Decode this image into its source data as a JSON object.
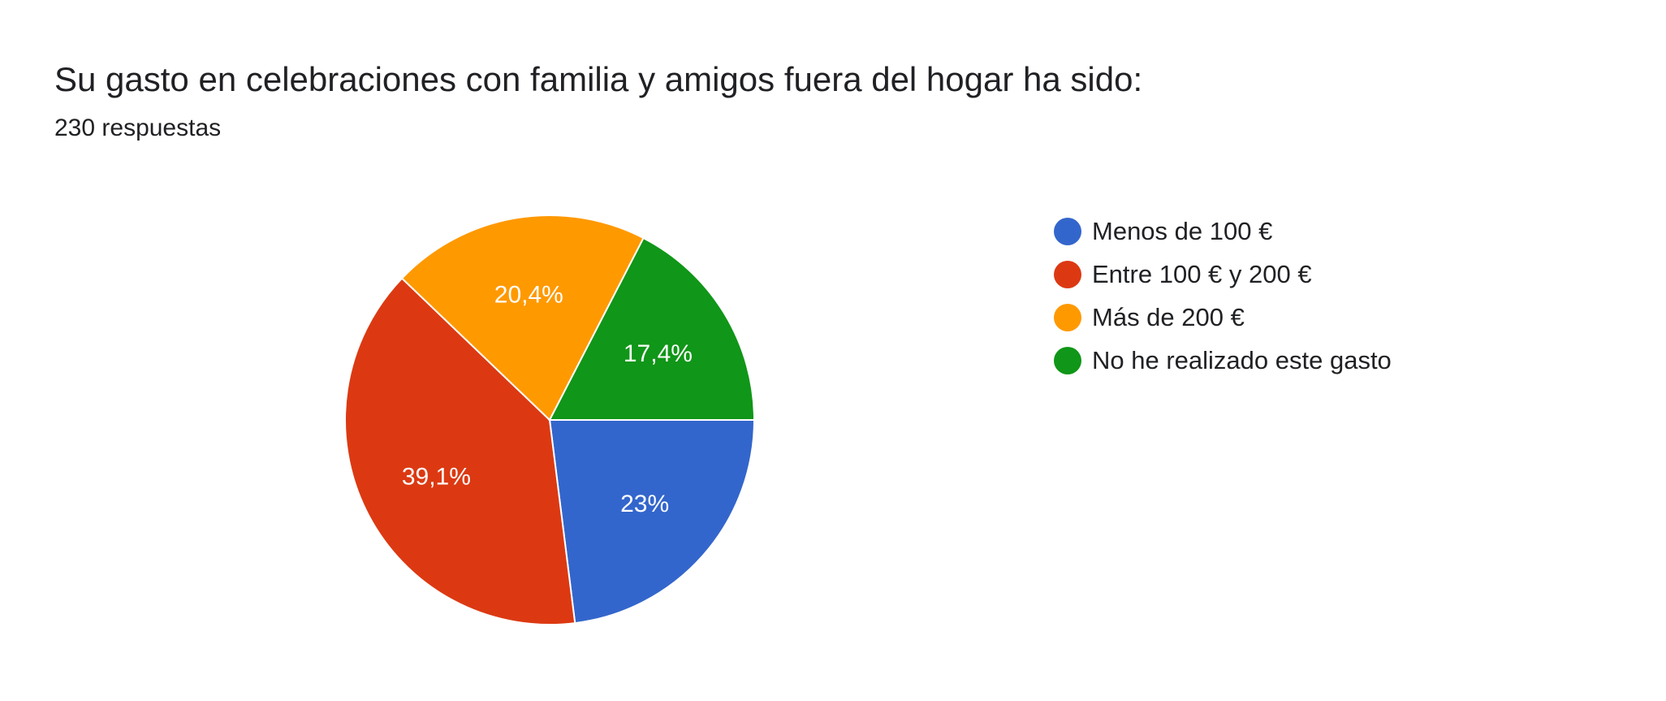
{
  "header": {
    "title": "Su gasto en celebraciones con familia y amigos fuera del hogar ha sido:",
    "subtitle": "230 respuestas"
  },
  "chart_data": {
    "type": "pie",
    "title": "Su gasto en celebraciones con familia y amigos fuera del hogar ha sido:",
    "subtitle": "230 respuestas",
    "categories": [
      "Menos de 100 €",
      "Entre 100 € y 200 €",
      "Más de 200 €",
      "No he realizado este gasto"
    ],
    "values": [
      23,
      39.1,
      20.4,
      17.4
    ],
    "value_labels": [
      "23%",
      "39,1%",
      "20,4%",
      "17,4%"
    ],
    "colors": [
      "#3366cc",
      "#dc3912",
      "#ff9900",
      "#109618"
    ],
    "legend_position": "right",
    "start_angle": "3 o'clock",
    "direction": "clockwise"
  }
}
